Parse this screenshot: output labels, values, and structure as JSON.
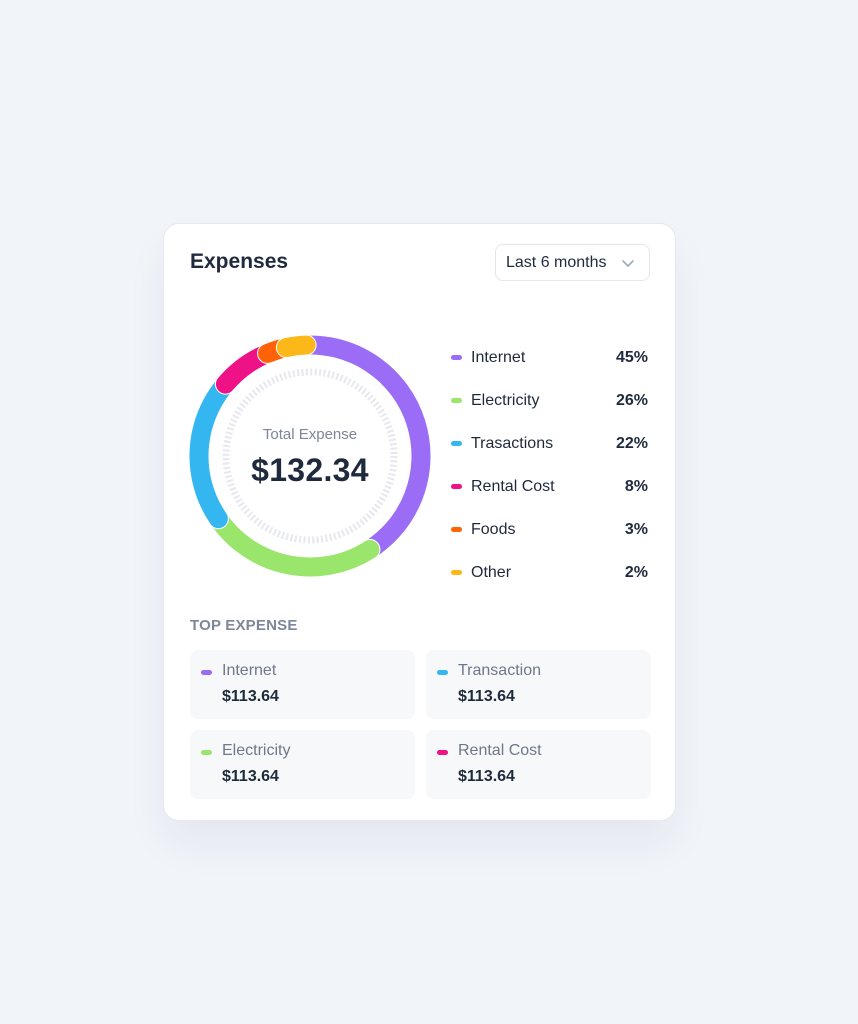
{
  "card": {
    "title": "Expenses",
    "period_select": {
      "value": "Last 6 months",
      "icon": "chevron-down-icon"
    }
  },
  "donut": {
    "center_label": "Total Expense",
    "center_value": "$132.34"
  },
  "legend": [
    {
      "name": "Internet",
      "pct": "45%",
      "color": "#9b6cf5"
    },
    {
      "name": "Electricity",
      "pct": "26%",
      "color": "#9ae56c"
    },
    {
      "name": "Trasactions",
      "pct": "22%",
      "color": "#34b6f0"
    },
    {
      "name": "Rental Cost",
      "pct": "8%",
      "color": "#ef1186"
    },
    {
      "name": "Foods",
      "pct": "3%",
      "color": "#ff6207"
    },
    {
      "name": "Other",
      "pct": "2%",
      "color": "#fbb818"
    }
  ],
  "top_expense": {
    "label": "TOP EXPENSE",
    "items": [
      {
        "name": "Internet",
        "amount": "$113.64",
        "color": "#9b6cf5"
      },
      {
        "name": "Transaction",
        "amount": "$113.64",
        "color": "#34b6f0"
      },
      {
        "name": "Electricity",
        "amount": "$113.64",
        "color": "#9ae56c"
      },
      {
        "name": "Rental Cost",
        "amount": "$113.64",
        "color": "#ef1186"
      }
    ]
  },
  "chart_data": {
    "type": "pie",
    "variant": "donut",
    "title": "Expenses",
    "subtitle": "Last 6 months",
    "center_label": "Total Expense",
    "center_value": "$132.34",
    "categories": [
      "Internet",
      "Electricity",
      "Trasactions",
      "Rental Cost",
      "Foods",
      "Other"
    ],
    "values": [
      45,
      26,
      22,
      8,
      3,
      2
    ],
    "unit": "%",
    "colors": [
      "#9b6cf5",
      "#9ae56c",
      "#34b6f0",
      "#ef1186",
      "#ff6207",
      "#fbb818"
    ],
    "legend_position": "right"
  }
}
